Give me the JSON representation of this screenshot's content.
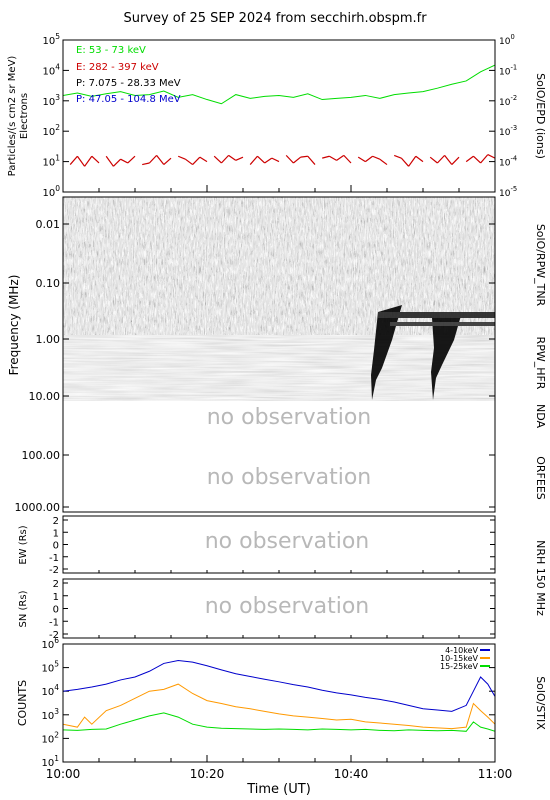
{
  "title": "Survey of 25 SEP 2024 from secchirh.obspm.fr",
  "no_observation_text": "no observation",
  "colors": {
    "epd_e_low": "#00dd00",
    "epd_e_high": "#cc0000",
    "epd_p_high": "#000000",
    "epd_p_low": "#0000cc",
    "stix_4_10": "#0000cc",
    "stix_10_15": "#ff9900",
    "stix_15_25": "#00dd00"
  },
  "chart_data": [
    {
      "panel": "epd",
      "type": "line",
      "ylabel": "Particles/(s cm2 sr MeV)",
      "ylabel2": "Electrons",
      "right_label": "SolO/EPD (ions)",
      "yscale": "log",
      "ylim": [
        1,
        100000
      ],
      "y_ticks": [
        "10^0",
        "10^1",
        "10^2",
        "10^3",
        "10^4",
        "10^5"
      ],
      "y2_ticks": [
        "10^-5",
        "10^-4",
        "10^-3",
        "10^-2",
        "10^-1",
        "10^0"
      ],
      "x_ticks": [
        "10:00",
        "10:20",
        "10:40",
        "11:00"
      ],
      "series": [
        {
          "name": "E: 53 - 73 keV",
          "color_key": "epd_e_low",
          "x": [
            0,
            2,
            4,
            6,
            8,
            10,
            12,
            14,
            16,
            18,
            20,
            22,
            24,
            26,
            28,
            30,
            32,
            34,
            36,
            38,
            40,
            42,
            44,
            46,
            48,
            50,
            52,
            54,
            56,
            58,
            60
          ],
          "y": [
            1500,
            1800,
            1400,
            1700,
            2000,
            1500,
            1600,
            2100,
            1300,
            1600,
            1100,
            800,
            1600,
            1200,
            1400,
            1500,
            1300,
            1700,
            1100,
            1200,
            1300,
            1500,
            1200,
            1600,
            1800,
            2000,
            2600,
            3500,
            4500,
            9000,
            15000
          ]
        },
        {
          "name": "E: 282 - 397 keV",
          "color_key": "epd_e_high",
          "x": [
            1,
            2,
            3,
            4,
            5,
            6,
            7,
            8,
            9,
            10,
            11,
            12,
            13,
            14,
            15,
            16,
            17,
            18,
            19,
            20,
            21,
            22,
            23,
            24,
            25,
            26,
            27,
            28,
            29,
            30,
            31,
            32,
            33,
            34,
            35,
            36,
            37,
            38,
            39,
            40,
            41,
            42,
            43,
            44,
            45,
            46,
            47,
            48,
            49,
            50,
            51,
            52,
            53,
            54,
            55,
            56,
            57,
            58,
            59,
            60
          ],
          "y": [
            8,
            15,
            7,
            15,
            9,
            15,
            7,
            12,
            9,
            15,
            8,
            9,
            16,
            8,
            13,
            15,
            12,
            8,
            14,
            10,
            15,
            9,
            16,
            11,
            14,
            8,
            15,
            9,
            13,
            10,
            16,
            9,
            14,
            15,
            8,
            13,
            15,
            11,
            16,
            9,
            14,
            10,
            15,
            12,
            8,
            16,
            13,
            7,
            15,
            10,
            14,
            9,
            16,
            8,
            14,
            10,
            15,
            9,
            17,
            13
          ]
        },
        {
          "name": "P: 7.075 - 28.33 MeV",
          "color_key": "epd_p_high",
          "x": [],
          "y": []
        },
        {
          "name": "P: 47.05 - 104.8 MeV",
          "color_key": "epd_p_low",
          "x": [],
          "y": []
        }
      ]
    },
    {
      "panel": "radio_spectrogram",
      "type": "heatmap",
      "ylabel": "Frequency (MHz)",
      "y_ticks": [
        "0.01",
        "0.10",
        "1.00",
        "10.00",
        "100.00",
        "1000.00"
      ],
      "right_labels": [
        "SolO/RPW_TNR",
        "RPW_HFR",
        "NDA",
        "ORFEES"
      ]
    },
    {
      "panel": "nrh_ew",
      "type": "line",
      "ylabel": "EW (Rs)",
      "y_ticks": [
        "2",
        "1",
        "0",
        "-1",
        "-2"
      ],
      "right_label": "NRH 150 MHz"
    },
    {
      "panel": "nrh_ns",
      "type": "line",
      "ylabel": "SN (Rs)",
      "y_ticks": [
        "2",
        "1",
        "0",
        "-1",
        "-2"
      ]
    },
    {
      "panel": "stix",
      "type": "line",
      "ylabel": "COUNTS",
      "right_label": "SolO/STIX",
      "yscale": "log",
      "ylim": [
        10,
        1000000
      ],
      "y_ticks": [
        "10^1",
        "10^2",
        "10^3",
        "10^4",
        "10^5",
        "10^6"
      ],
      "x_ticks": [
        "10:00",
        "10:20",
        "10:40",
        "11:00"
      ],
      "xlabel": "Time (UT)",
      "series": [
        {
          "name": "4-10keV",
          "color_key": "stix_4_10",
          "x": [
            0,
            2,
            4,
            6,
            8,
            10,
            12,
            14,
            16,
            18,
            20,
            22,
            24,
            26,
            28,
            30,
            32,
            34,
            36,
            38,
            40,
            42,
            44,
            46,
            48,
            50,
            52,
            54,
            56,
            57,
            58,
            59,
            60
          ],
          "y": [
            10000,
            12000,
            15000,
            20000,
            30000,
            40000,
            70000,
            150000,
            200000,
            170000,
            120000,
            80000,
            55000,
            42000,
            32000,
            25000,
            19000,
            15000,
            11000,
            8500,
            7000,
            5500,
            4500,
            3500,
            2500,
            1800,
            1600,
            1400,
            2500,
            10000,
            40000,
            20000,
            6000
          ]
        },
        {
          "name": "10-15keV",
          "color_key": "stix_10_15",
          "x": [
            0,
            2,
            3,
            4,
            6,
            8,
            10,
            12,
            14,
            16,
            18,
            20,
            22,
            24,
            26,
            28,
            30,
            32,
            34,
            36,
            38,
            40,
            42,
            44,
            46,
            48,
            50,
            52,
            54,
            56,
            57,
            58,
            59,
            60
          ],
          "y": [
            400,
            300,
            800,
            400,
            1500,
            2500,
            5000,
            10000,
            12000,
            20000,
            8000,
            4000,
            3000,
            2200,
            1800,
            1400,
            1100,
            900,
            800,
            700,
            600,
            650,
            500,
            450,
            400,
            350,
            300,
            280,
            260,
            300,
            3000,
            1500,
            800,
            400
          ]
        },
        {
          "name": "15-25keV",
          "color_key": "stix_15_25",
          "x": [
            0,
            2,
            4,
            6,
            8,
            10,
            12,
            14,
            16,
            18,
            20,
            22,
            24,
            26,
            28,
            30,
            32,
            34,
            36,
            38,
            40,
            42,
            44,
            46,
            48,
            50,
            52,
            54,
            56,
            57,
            58,
            59,
            60
          ],
          "y": [
            230,
            220,
            240,
            250,
            400,
            600,
            900,
            1200,
            800,
            400,
            300,
            270,
            260,
            250,
            240,
            250,
            240,
            230,
            250,
            240,
            230,
            240,
            220,
            210,
            230,
            220,
            210,
            220,
            200,
            500,
            300,
            250,
            200
          ]
        }
      ]
    }
  ]
}
